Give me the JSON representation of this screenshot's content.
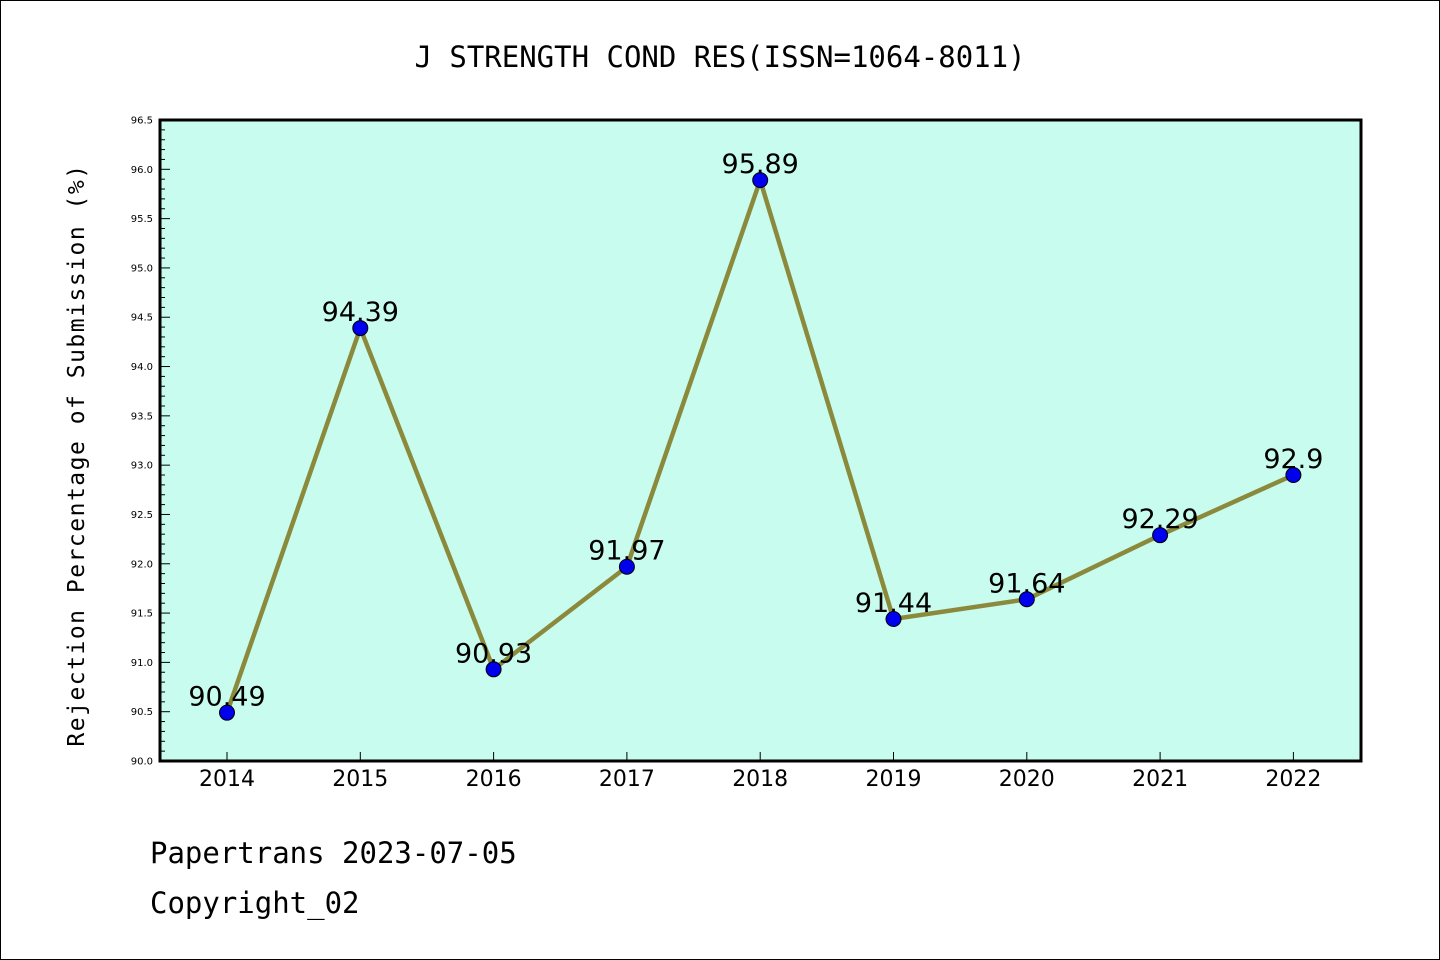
{
  "chart_data": {
    "type": "line",
    "title": "J STRENGTH COND RES(ISSN=1064-8011)",
    "xlabel": "",
    "ylabel": "Rejection Percentage of Submission (%)",
    "categories": [
      "2014",
      "2015",
      "2016",
      "2017",
      "2018",
      "2019",
      "2020",
      "2021",
      "2022"
    ],
    "series": [
      {
        "values": [
          90.49,
          94.39,
          90.93,
          91.97,
          95.89,
          91.44,
          91.64,
          92.29,
          92.9
        ],
        "labels": [
          "90.49",
          "94.39",
          "90.93",
          "91.97",
          "95.89",
          "91.44",
          "91.64",
          "92.29",
          "92.9"
        ]
      }
    ],
    "ylim": [
      90.0,
      96.5
    ],
    "yticks": [
      "90.0",
      "90.5",
      "91.0",
      "91.5",
      "92.0",
      "92.5",
      "93.0",
      "93.5",
      "94.0",
      "94.5",
      "95.0",
      "95.5",
      "96.0",
      "96.5"
    ],
    "grid": false,
    "colors": {
      "plot_background": "#c8fcee",
      "line": "#8b8a3c",
      "marker": "#0000ee"
    }
  },
  "footer": {
    "date_line": "Papertrans 2023-07-05",
    "copyright": "Copyright_02"
  }
}
